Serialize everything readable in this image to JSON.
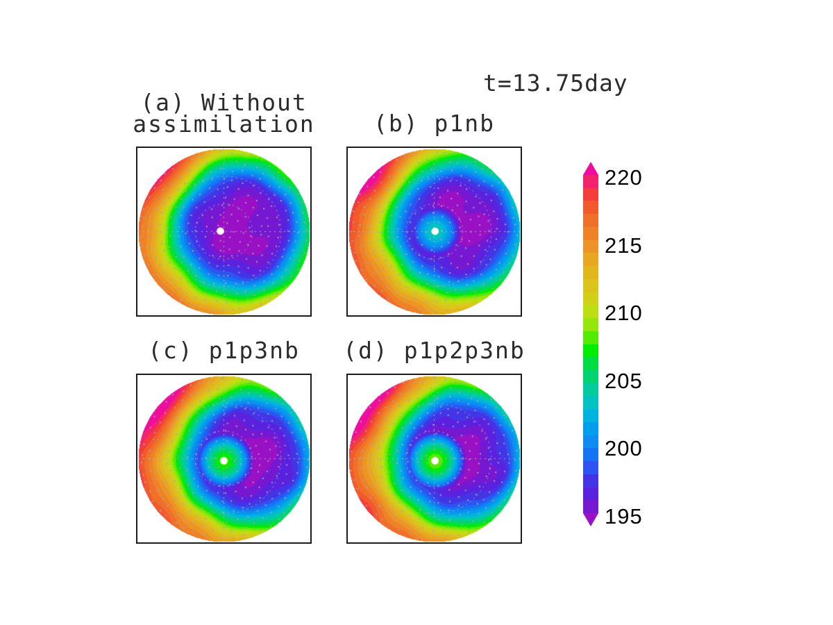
{
  "figure": {
    "time_label": "t=13.75day",
    "background": "#FFFFFF"
  },
  "panels": [
    {
      "id": "a",
      "label": "(a) Without\nassimilation"
    },
    {
      "id": "b",
      "label": "(b) p1nb"
    },
    {
      "id": "c",
      "label": "(c) p1p3nb"
    },
    {
      "id": "d",
      "label": "(d) p1p2p3nb"
    }
  ],
  "colorbar": {
    "ticks": [
      220,
      215,
      210,
      205,
      200,
      195
    ],
    "min": 195,
    "max": 220,
    "above_max_color": "#EE0D9C",
    "below_min_color": "#9A10C4"
  },
  "chart_data": {
    "type": "filled-contour-polar-maps",
    "title": "t=13.75day",
    "contour_interval": 1,
    "scale": {
      "min": 195,
      "max": 220,
      "tick_values": [
        220,
        215,
        210,
        205,
        200,
        195
      ]
    },
    "palette_low_to_high": [
      "#7618D2",
      "#5A22DE",
      "#4335E6",
      "#2D53F0",
      "#1474F4",
      "#0E8CF2",
      "#009EEC",
      "#00B2DE",
      "#00C2C2",
      "#00CC9C",
      "#00D470",
      "#00DC44",
      "#00EC00",
      "#55EA04",
      "#95E60C",
      "#BCDE12",
      "#D0D018",
      "#DBC41C",
      "#E2B61F",
      "#E8A622",
      "#EC9425",
      "#EE8227",
      "#F0702A",
      "#F25A2E",
      "#F43C3C",
      "#F2256C"
    ],
    "palette_base_value": 194,
    "above_max_color": "#EE0D9C",
    "below_min_color": "#9A10C4",
    "field_model": {
      "profile": [
        [
          0,
          193.1
        ],
        [
          0.2,
          193.5
        ],
        [
          0.33,
          194.0
        ],
        [
          0.48,
          195.0
        ],
        [
          0.57,
          196.0
        ],
        [
          0.62,
          197.3
        ],
        [
          0.66,
          198.8
        ],
        [
          0.7,
          200.3
        ],
        [
          0.74,
          201.8
        ],
        [
          0.78,
          203.3
        ],
        [
          0.82,
          204.8
        ],
        [
          0.86,
          206.3
        ],
        [
          0.9,
          207.8
        ],
        [
          0.95,
          209.3
        ],
        [
          1.0,
          210.6
        ],
        [
          1.1,
          212.4
        ],
        [
          1.25,
          214.4
        ],
        [
          1.45,
          216.4
        ],
        [
          1.7,
          218.2
        ],
        [
          2.3,
          220.8
        ]
      ],
      "warm_corner": {
        "x": -0.95,
        "y": -0.95,
        "scale": 14,
        "reach": 1.15,
        "power": 1.6
      },
      "warm_south": {
        "scale": 5,
        "power": 1.2
      },
      "noise_amps": [
        0.4,
        0.3,
        0.25
      ]
    },
    "panels": [
      {
        "label": "(a) Without assimilation",
        "seed": 11,
        "profile_boost": 0.0,
        "vortex_center": {
          "x": 0.58,
          "y": 0.485
        },
        "anomaly": null,
        "marker": {
          "x": 0.48,
          "y": 0.497
        }
      },
      {
        "label": "(b) p1nb",
        "seed": 23,
        "profile_boost": 0.3,
        "vortex_center": {
          "x": 0.625,
          "y": 0.47
        },
        "anomaly": {
          "x": 0.505,
          "y": 0.498,
          "peak": 203.6,
          "a": 0.08,
          "q": 0.005
        },
        "marker": {
          "x": 0.505,
          "y": 0.498
        }
      },
      {
        "label": "(c) p1p3nb",
        "seed": 37,
        "profile_boost": 0.5,
        "vortex_center": {
          "x": 0.635,
          "y": 0.495
        },
        "anomaly": {
          "x": 0.5,
          "y": 0.512,
          "peak": 207.8,
          "a": 0.1,
          "q": 0.0055
        },
        "marker": {
          "x": 0.5,
          "y": 0.512
        }
      },
      {
        "label": "(d) p1p2p3nb",
        "seed": 53,
        "profile_boost": 0.5,
        "vortex_center": {
          "x": 0.635,
          "y": 0.49
        },
        "anomaly": {
          "x": 0.505,
          "y": 0.512,
          "peak": 208.6,
          "a": 0.1,
          "q": 0.0052
        },
        "marker": {
          "x": 0.505,
          "y": 0.512
        }
      }
    ]
  }
}
